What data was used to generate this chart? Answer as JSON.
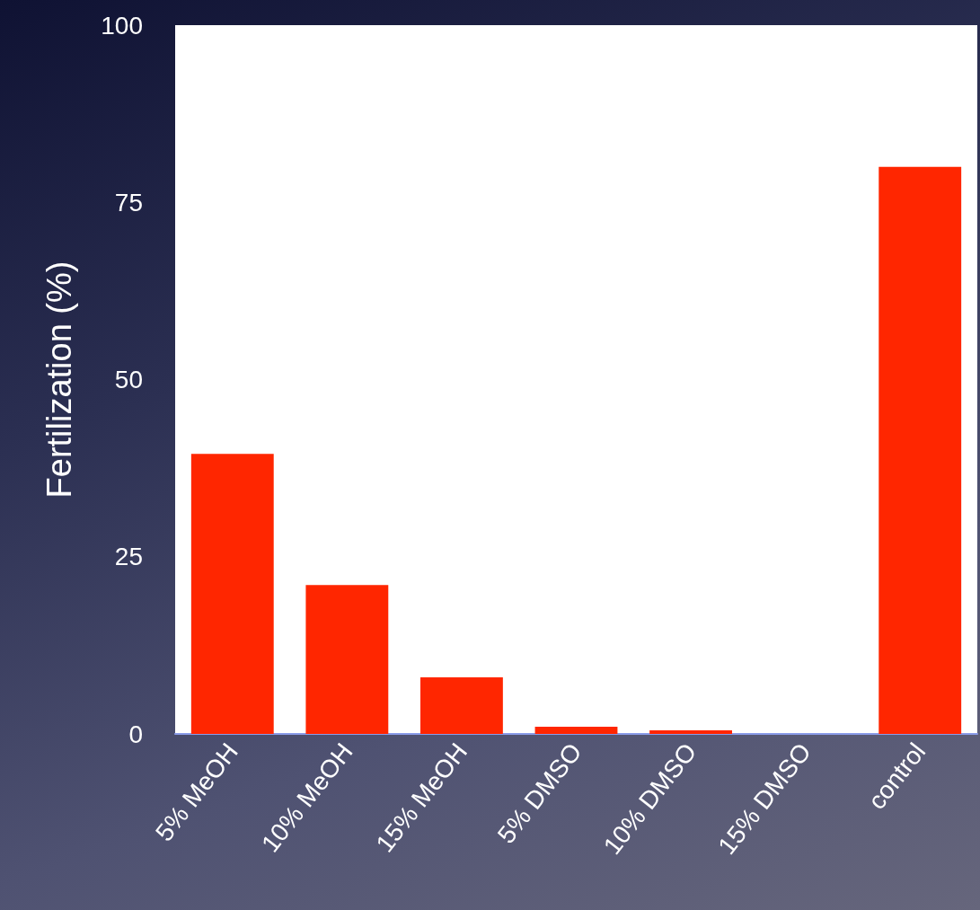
{
  "chart_data": {
    "type": "bar",
    "ylabel": "Fertilization (%)",
    "categories": [
      "5% MeOH",
      "10% MeOH",
      "15% MeOH",
      "5% DMSO",
      "10% DMSO",
      "15% DMSO",
      "control"
    ],
    "values": [
      39.5,
      21,
      8,
      1,
      0.5,
      0,
      80
    ],
    "color": "#ff2600",
    "ylim": [
      0,
      100
    ],
    "yticks": [
      0,
      25,
      50,
      75,
      100
    ],
    "grid": false
  }
}
